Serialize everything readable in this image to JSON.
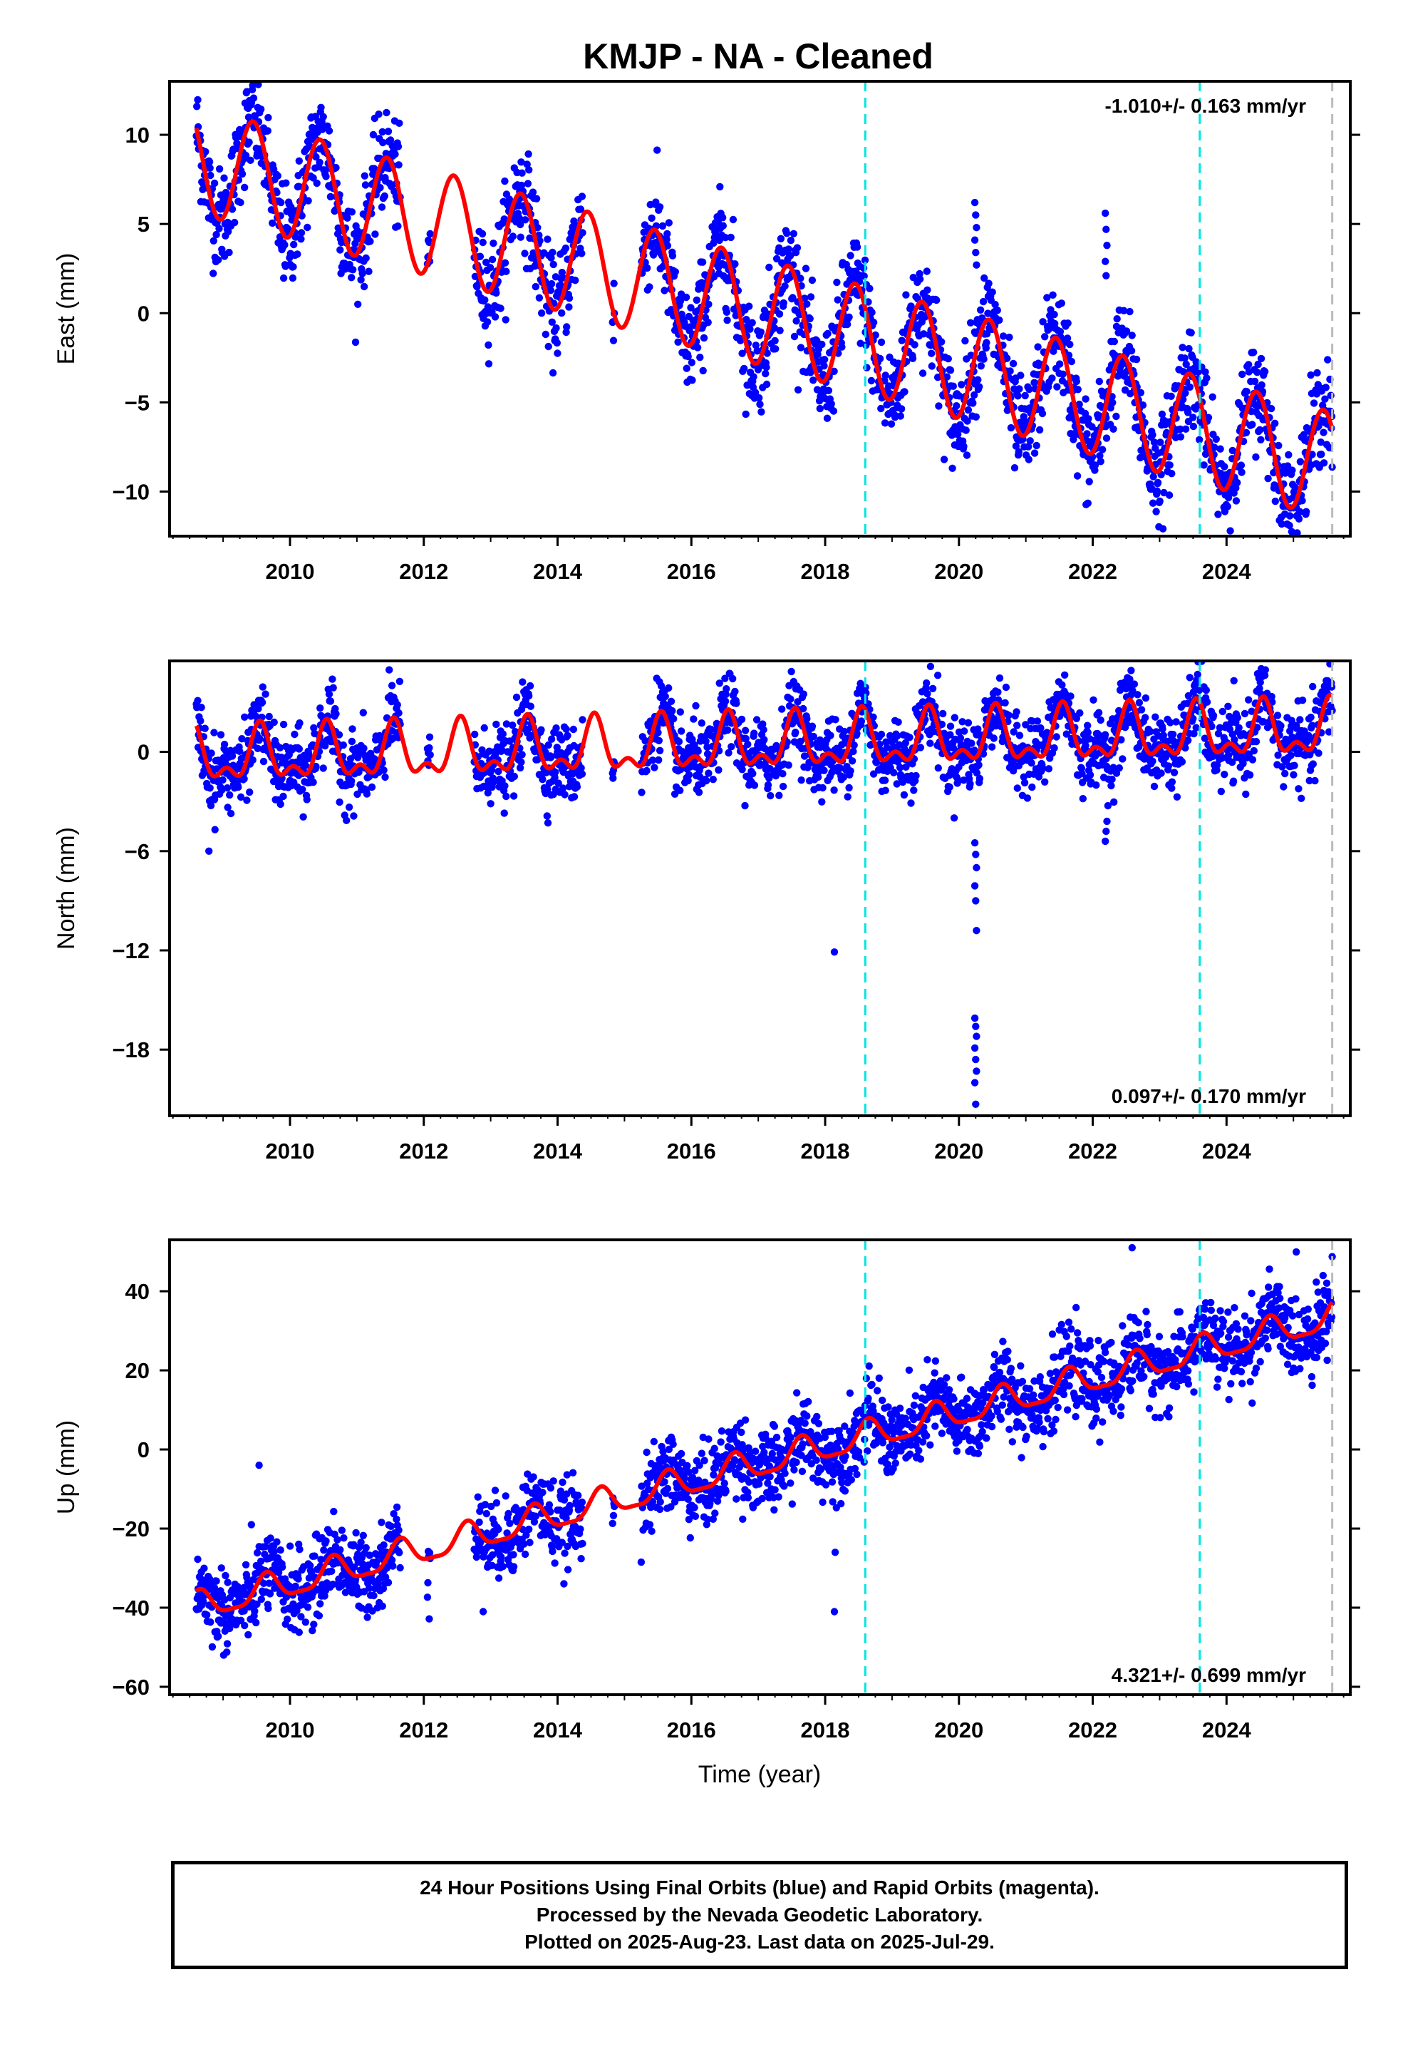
{
  "title": "KMJP  - NA - Cleaned",
  "xlabel": "Time (year)",
  "footer": {
    "line1": "24 Hour Positions Using Final Orbits (blue) and Rapid Orbits (magenta).",
    "line2": "Processed by the Nevada Geodetic Laboratory.",
    "line3": "Plotted on 2025-Aug-23. Last data on 2025-Jul-29."
  },
  "colors": {
    "points": "#0000ff",
    "model": "#ff0000",
    "equipment_change_lines": "#00e5e5",
    "last_data_line": "#bbbbbb"
  },
  "chart_data": [
    {
      "type": "scatter",
      "name": "East",
      "ylabel": "East (mm)",
      "xlim": [
        2008.2,
        2025.85
      ],
      "ylim": [
        -12.5,
        13
      ],
      "yticks": [
        -10,
        -5,
        0,
        5,
        10
      ],
      "xticks": [
        2010,
        2012,
        2014,
        2016,
        2018,
        2020,
        2022,
        2024
      ],
      "rate_label": "-1.010+/- 0.163 mm/yr",
      "rate_position": "top-right",
      "trend": {
        "start_year": 2008.6,
        "start_value": 8.6,
        "slope": -1.01
      },
      "seasonal": {
        "annual_amp": 3.0,
        "phase_peak_fraction": 0.45,
        "semiannual_amp": 0.0
      },
      "scatter_sd": 1.4,
      "data_gaps": [
        [
          2011.65,
          2012.05
        ],
        [
          2012.1,
          2012.75
        ],
        [
          2014.85,
          2015.25
        ]
      ],
      "extra_gap_years": [
        2012.5,
        2014.6
      ],
      "outlier_clusters": [
        {
          "year": 2020.25,
          "values": [
            6.2,
            5.5,
            4.8,
            4.1,
            3.4,
            2.7
          ]
        },
        {
          "year": 2022.2,
          "values": [
            5.6,
            4.7,
            3.8,
            2.9,
            2.1
          ]
        }
      ],
      "vertical_lines": [
        2018.6,
        2023.6
      ],
      "last_data": 2025.58
    },
    {
      "type": "scatter",
      "name": "North",
      "ylabel": "North (mm)",
      "xlim": [
        2008.2,
        2025.85
      ],
      "ylim": [
        -22,
        5.5
      ],
      "yticks": [
        -18,
        -12,
        -6,
        0
      ],
      "xticks": [
        2010,
        2012,
        2014,
        2016,
        2018,
        2020,
        2022,
        2024
      ],
      "rate_label": "0.097+/- 0.170 mm/yr",
      "rate_position": "bottom-right",
      "trend": {
        "start_year": 2008.6,
        "start_value": -0.4,
        "slope": 0.097
      },
      "seasonal": {
        "annual_amp": 1.4,
        "phase_peak_fraction": 0.55,
        "semiannual_amp": 0.8
      },
      "scatter_sd": 1.1,
      "data_gaps": [
        [
          2011.65,
          2012.05
        ],
        [
          2012.1,
          2012.75
        ],
        [
          2014.85,
          2015.25
        ]
      ],
      "extra_gap_years": [
        2012.5,
        2014.6
      ],
      "outlier_clusters": [
        {
          "year": 2020.25,
          "values": [
            -5.5,
            -6.2,
            -7.0,
            -8.1,
            -9.0,
            -10.8,
            -16.1,
            -16.6,
            -17.2,
            -17.9,
            -18.6,
            -19.3,
            -20.0,
            -21.3
          ]
        },
        {
          "year": 2018.15,
          "values": [
            -12.1
          ]
        },
        {
          "year": 2008.8,
          "values": [
            -6.0
          ]
        },
        {
          "year": 2022.2,
          "values": [
            -5.4,
            -4.8,
            -4.2
          ]
        }
      ],
      "vertical_lines": [
        2018.6,
        2023.6
      ],
      "last_data": 2025.58
    },
    {
      "type": "scatter",
      "name": "Up",
      "ylabel": "Up (mm)",
      "xlim": [
        2008.2,
        2025.85
      ],
      "ylim": [
        -62,
        53
      ],
      "yticks": [
        -60,
        -40,
        -20,
        0,
        20,
        40
      ],
      "xticks": [
        2010,
        2012,
        2014,
        2016,
        2018,
        2020,
        2022,
        2024
      ],
      "rate_label": "4.321+/- 0.699 mm/yr",
      "rate_position": "bottom-right",
      "trend": {
        "start_year": 2008.6,
        "start_value": -40,
        "slope": 4.321
      },
      "seasonal": {
        "annual_amp": 3.5,
        "phase_peak_fraction": 0.65,
        "semiannual_amp": 1.0
      },
      "scatter_sd": 5.0,
      "data_gaps": [
        [
          2011.65,
          2012.05
        ],
        [
          2012.1,
          2012.75
        ],
        [
          2014.85,
          2015.25
        ]
      ],
      "extra_gap_years": [
        2012.5,
        2014.6
      ],
      "outlier_clusters": [
        {
          "year": 2018.15,
          "values": [
            -41,
            -26
          ]
        },
        {
          "year": 2012.9,
          "values": [
            -41
          ]
        },
        {
          "year": 2009.55,
          "values": [
            -4
          ]
        },
        {
          "year": 2022.6,
          "values": [
            51
          ]
        }
      ],
      "vertical_lines": [
        2018.6,
        2023.6
      ],
      "last_data": 2025.58
    }
  ]
}
